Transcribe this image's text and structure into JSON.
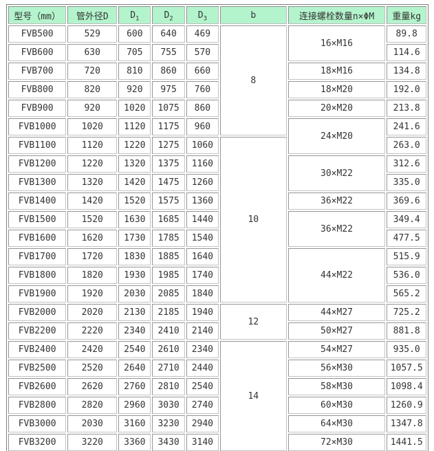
{
  "colors": {
    "header_bg": "#b4f4cd",
    "cell_border": "#a2a2a2",
    "outer_border": "#7e7e7e",
    "text": "#333333"
  },
  "table": {
    "headers": [
      {
        "text": "型号（mm）"
      },
      {
        "text": "管外径D"
      },
      {
        "text": "D",
        "sub": "1"
      },
      {
        "text": "D",
        "sub": "2"
      },
      {
        "text": "D",
        "sub": "3"
      },
      {
        "text": "b"
      },
      {
        "text": "连接螺栓数量n×ΦM"
      },
      {
        "text": "重量kg"
      }
    ],
    "rows": [
      {
        "model": "FVB500",
        "d": "529",
        "d1": "600",
        "d2": "640",
        "d3": "469",
        "b": "8",
        "b_span": 6,
        "bolts": "16×M16",
        "bolts_span": 2,
        "w": "89.8"
      },
      {
        "model": "FVB600",
        "d": "630",
        "d1": "705",
        "d2": "755",
        "d3": "570",
        "w": "114.6"
      },
      {
        "model": "FVB700",
        "d": "720",
        "d1": "810",
        "d2": "860",
        "d3": "660",
        "bolts": "18×M16",
        "bolts_span": 1,
        "w": "134.8"
      },
      {
        "model": "FVB800",
        "d": "820",
        "d1": "920",
        "d2": "975",
        "d3": "760",
        "bolts": "18×M20",
        "bolts_span": 1,
        "w": "192.0"
      },
      {
        "model": "FVB900",
        "d": "920",
        "d1": "1020",
        "d2": "1075",
        "d3": "860",
        "bolts": "20×M20",
        "bolts_span": 1,
        "w": "213.8"
      },
      {
        "model": "FVB1000",
        "d": "1020",
        "d1": "1120",
        "d2": "1175",
        "d3": "960",
        "bolts": "24×M20",
        "bolts_span": 2,
        "w": "241.6"
      },
      {
        "model": "FVB1100",
        "d": "1120",
        "d1": "1220",
        "d2": "1275",
        "d3": "1060",
        "b": "10",
        "b_span": 9,
        "w": "263.0"
      },
      {
        "model": "FVB1200",
        "d": "1220",
        "d1": "1320",
        "d2": "1375",
        "d3": "1160",
        "bolts": "30×M22",
        "bolts_span": 2,
        "w": "312.6"
      },
      {
        "model": "FVB1300",
        "d": "1320",
        "d1": "1420",
        "d2": "1475",
        "d3": "1260",
        "w": "335.0"
      },
      {
        "model": "FVB1400",
        "d": "1420",
        "d1": "1520",
        "d2": "1575",
        "d3": "1360",
        "bolts": "36×M22",
        "bolts_span": 1,
        "w": "369.6"
      },
      {
        "model": "FVB1500",
        "d": "1520",
        "d1": "1630",
        "d2": "1685",
        "d3": "1440",
        "bolts": "36×M22",
        "bolts_span": 2,
        "w": "349.4"
      },
      {
        "model": "FVB1600",
        "d": "1620",
        "d1": "1730",
        "d2": "1785",
        "d3": "1540",
        "w": "477.5"
      },
      {
        "model": "FVB1700",
        "d": "1720",
        "d1": "1830",
        "d2": "1885",
        "d3": "1640",
        "bolts": "44×M22",
        "bolts_span": 3,
        "w": "515.9"
      },
      {
        "model": "FVB1800",
        "d": "1820",
        "d1": "1930",
        "d2": "1985",
        "d3": "1740",
        "w": "536.0"
      },
      {
        "model": "FVB1900",
        "d": "1920",
        "d1": "2030",
        "d2": "2085",
        "d3": "1840",
        "w": "565.2"
      },
      {
        "model": "FVB2000",
        "d": "2020",
        "d1": "2130",
        "d2": "2185",
        "d3": "1940",
        "b": "12",
        "b_span": 2,
        "bolts": "44×M27",
        "bolts_span": 1,
        "w": "725.2"
      },
      {
        "model": "FVB2200",
        "d": "2220",
        "d1": "2340",
        "d2": "2410",
        "d3": "2140",
        "bolts": "50×M27",
        "bolts_span": 1,
        "w": "881.8"
      },
      {
        "model": "FVB2400",
        "d": "2420",
        "d1": "2540",
        "d2": "2610",
        "d3": "2340",
        "b": "14",
        "b_span": 6,
        "bolts": "54×M27",
        "bolts_span": 1,
        "w": "935.0"
      },
      {
        "model": "FVB2500",
        "d": "2520",
        "d1": "2640",
        "d2": "2710",
        "d3": "2440",
        "bolts": "56×M30",
        "bolts_span": 1,
        "w": "1057.5"
      },
      {
        "model": "FVB2600",
        "d": "2620",
        "d1": "2760",
        "d2": "2810",
        "d3": "2540",
        "bolts": "58×M30",
        "bolts_span": 1,
        "w": "1098.4"
      },
      {
        "model": "FVB2800",
        "d": "2820",
        "d1": "2960",
        "d2": "3030",
        "d3": "2740",
        "bolts": "60×M30",
        "bolts_span": 1,
        "w": "1260.9"
      },
      {
        "model": "FVB3000",
        "d": "2030",
        "d1": "3160",
        "d2": "3230",
        "d3": "2940",
        "bolts": "64×M30",
        "bolts_span": 1,
        "w": "1347.8"
      },
      {
        "model": "FVB3200",
        "d": "3220",
        "d1": "3360",
        "d2": "3430",
        "d3": "3140",
        "bolts": "72×M30",
        "bolts_span": 1,
        "w": "1441.5"
      }
    ]
  }
}
